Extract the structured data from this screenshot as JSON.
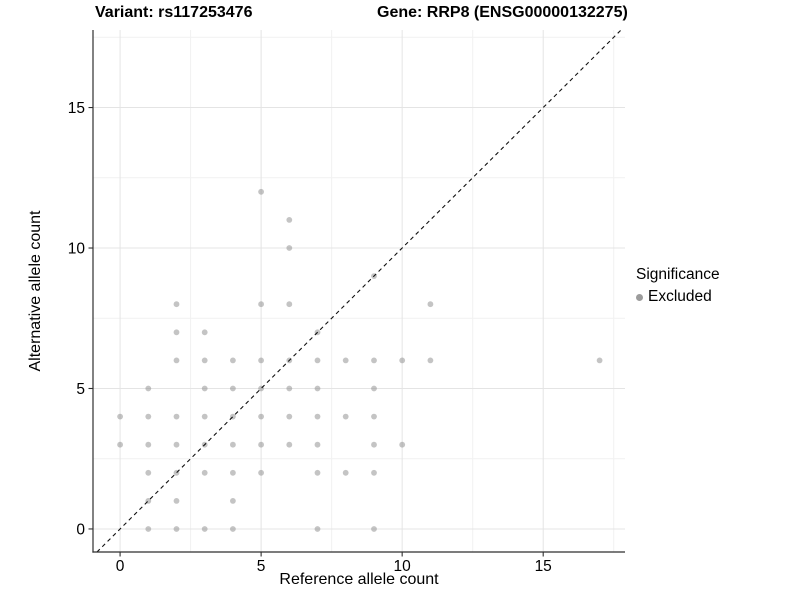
{
  "chart_data": {
    "type": "scatter",
    "title_left": "Variant: rs117253476",
    "title_right": "Gene: RRP8 (ENSG00000132275)",
    "xlabel": "Reference allele count",
    "ylabel": "Alternative allele count",
    "xlim": [
      -0.96,
      17.9
    ],
    "ylim": [
      -0.82,
      17.76
    ],
    "x_major_ticks": [
      0,
      5,
      10,
      15
    ],
    "y_major_ticks": [
      0,
      5,
      10,
      15
    ],
    "x_minor_gridlines": [
      2.5,
      7.5,
      12.5,
      17.5
    ],
    "y_minor_gridlines": [
      2.5,
      7.5,
      12.5,
      17.5
    ],
    "grid": "major+minor",
    "identity_line": {
      "slope": 1,
      "intercept": 0,
      "style": "dashed"
    },
    "legend": {
      "title": "Significance",
      "position": "right",
      "items": [
        {
          "label": "Excluded",
          "marker": "circle",
          "color": "#9C9C9C"
        }
      ]
    },
    "series": [
      {
        "name": "Excluded",
        "marker": "circle",
        "color": "#8A8A8A",
        "opacity": 0.5,
        "points": [
          [
            0,
            3
          ],
          [
            0,
            4
          ],
          [
            1,
            0
          ],
          [
            1,
            1
          ],
          [
            1,
            2
          ],
          [
            1,
            3
          ],
          [
            1,
            4
          ],
          [
            1,
            5
          ],
          [
            2,
            0
          ],
          [
            2,
            1
          ],
          [
            2,
            2
          ],
          [
            2,
            3
          ],
          [
            2,
            4
          ],
          [
            2,
            6
          ],
          [
            2,
            7
          ],
          [
            2,
            8
          ],
          [
            3,
            0
          ],
          [
            3,
            2
          ],
          [
            3,
            3
          ],
          [
            3,
            4
          ],
          [
            3,
            5
          ],
          [
            3,
            6
          ],
          [
            3,
            7
          ],
          [
            4,
            0
          ],
          [
            4,
            1
          ],
          [
            4,
            2
          ],
          [
            4,
            3
          ],
          [
            4,
            4
          ],
          [
            4,
            5
          ],
          [
            4,
            6
          ],
          [
            5,
            2
          ],
          [
            5,
            3
          ],
          [
            5,
            4
          ],
          [
            5,
            5
          ],
          [
            5,
            6
          ],
          [
            5,
            8
          ],
          [
            5,
            12
          ],
          [
            6,
            3
          ],
          [
            6,
            4
          ],
          [
            6,
            5
          ],
          [
            6,
            6
          ],
          [
            6,
            8
          ],
          [
            6,
            10
          ],
          [
            6,
            11
          ],
          [
            7,
            0
          ],
          [
            7,
            2
          ],
          [
            7,
            3
          ],
          [
            7,
            4
          ],
          [
            7,
            5
          ],
          [
            7,
            6
          ],
          [
            7,
            7
          ],
          [
            8,
            2
          ],
          [
            8,
            4
          ],
          [
            8,
            6
          ],
          [
            9,
            0
          ],
          [
            9,
            2
          ],
          [
            9,
            3
          ],
          [
            9,
            4
          ],
          [
            9,
            5
          ],
          [
            9,
            6
          ],
          [
            9,
            9
          ],
          [
            10,
            3
          ],
          [
            10,
            6
          ],
          [
            11,
            6
          ],
          [
            11,
            8
          ],
          [
            17,
            6
          ]
        ]
      }
    ],
    "colors": {
      "grid_major": "#E4E4E4",
      "grid_minor": "#F1F1F1",
      "axis_line": "#2F2F2F",
      "tick_label": "#000000",
      "identity_line": "#111111"
    }
  }
}
